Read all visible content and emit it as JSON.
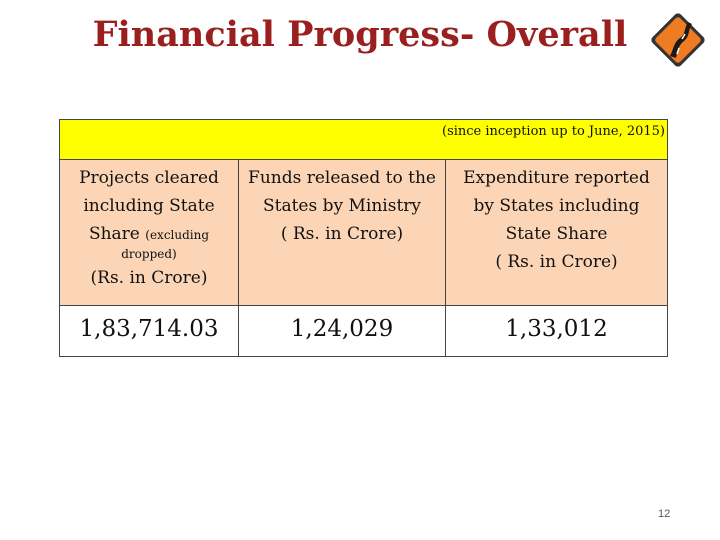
{
  "slide": {
    "title": "Financial Progress- Overall",
    "page_number": "12"
  },
  "table": {
    "note": "(since inception up to June, 2015)",
    "col1": {
      "line1": "Projects cleared",
      "line2": "including  State",
      "line3_main": "Share ",
      "line3_small": "(excluding",
      "line4": "dropped)",
      "unit": "(Rs. in Crore)",
      "value": "1,83,714.03"
    },
    "col2": {
      "line1": "Funds released to the",
      "line2": "States by Ministry",
      "line3": "( Rs. in Crore)",
      "value": "1,24,029"
    },
    "col3": {
      "line1": "Expenditure reported",
      "line2": "by States including",
      "line3": "State Share",
      "line4": "( Rs. in Crore)",
      "value": "1,33,012"
    }
  },
  "colors": {
    "title": "#9a1f1f",
    "note_bar": "#ffff00",
    "header_fill": "#fbd5b5",
    "logo_orange": "#ef7b22"
  },
  "icons": {
    "logo": "road-sign-icon"
  }
}
